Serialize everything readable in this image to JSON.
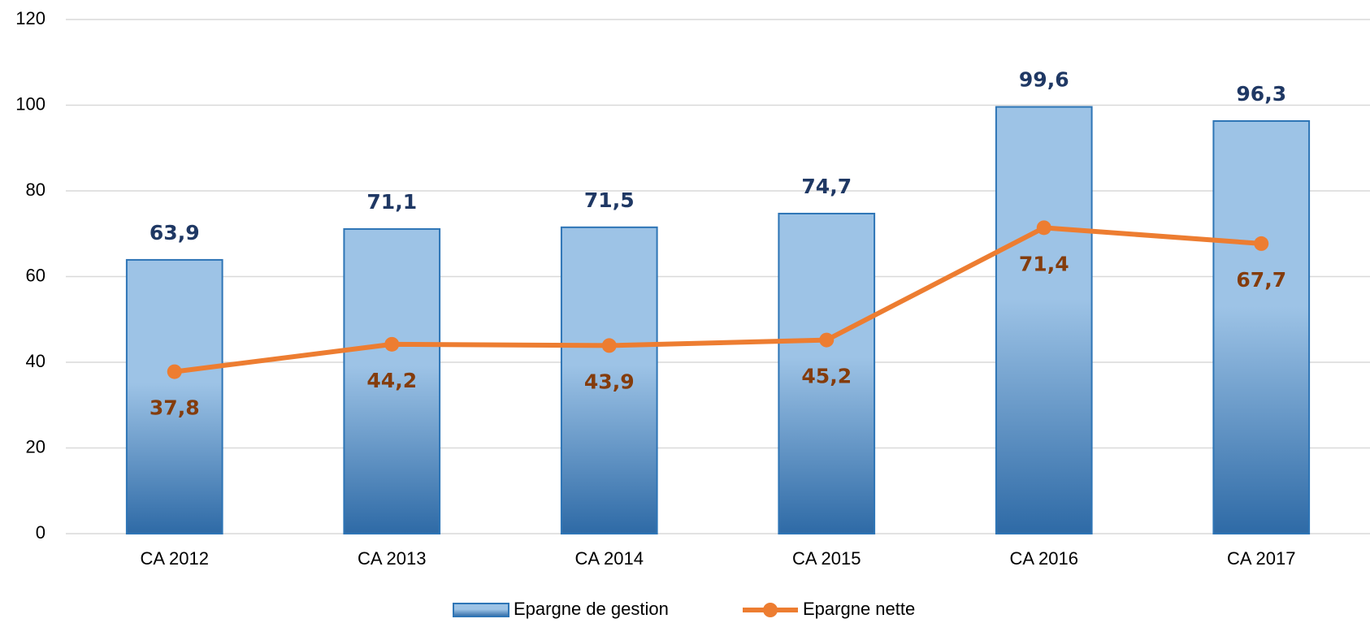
{
  "chart_data": {
    "type": "bar",
    "categories": [
      "CA 2012",
      "CA 2013",
      "CA 2014",
      "CA 2015",
      "CA 2016",
      "CA 2017"
    ],
    "series": [
      {
        "name": "Epargne de gestion",
        "type": "bar",
        "color": "#2e75b6",
        "values": [
          63.9,
          71.1,
          71.5,
          74.7,
          99.6,
          96.3
        ],
        "value_labels": [
          "63,9",
          "71,1",
          "71,5",
          "74,7",
          "99,6",
          "96,3"
        ]
      },
      {
        "name": "Epargne nette",
        "type": "line",
        "color": "#ed7d31",
        "values": [
          37.8,
          44.2,
          43.9,
          45.2,
          71.4,
          67.7
        ],
        "value_labels": [
          "37,8",
          "44,2",
          "43,9",
          "45,2",
          "71,4",
          "67,7"
        ]
      }
    ],
    "ylim": [
      0,
      120
    ],
    "yticks": [
      0,
      20,
      40,
      60,
      80,
      100,
      120
    ],
    "grid": true,
    "legend": "bottom"
  }
}
